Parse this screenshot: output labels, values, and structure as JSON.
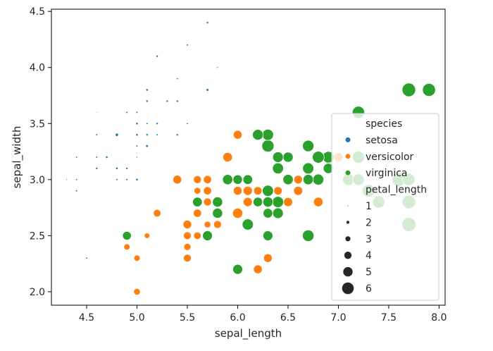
{
  "chart_data": {
    "type": "scatter",
    "title": "",
    "xlabel": "sepal_length",
    "ylabel": "sepal_width",
    "xlim": [
      4.15,
      8.06
    ],
    "ylim": [
      1.88,
      4.52
    ],
    "xticks": [
      4.5,
      5.0,
      5.5,
      6.0,
      6.5,
      7.0,
      7.5,
      8.0
    ],
    "yticks": [
      2.0,
      2.5,
      3.0,
      3.5,
      4.0,
      4.5
    ],
    "grid": false,
    "legend_position": "center-right",
    "hue": "species",
    "size": "petal_length",
    "colors": {
      "setosa": "#1f77b4",
      "versicolor": "#ff7f0e",
      "virginica": "#2ca02c"
    },
    "legend": {
      "hue_title": "species",
      "hue_entries": [
        "setosa",
        "versicolor",
        "virginica"
      ],
      "size_title": "petal_length",
      "size_entries": [
        {
          "label": "1",
          "value": 1
        },
        {
          "label": "2",
          "value": 2
        },
        {
          "label": "3",
          "value": 3
        },
        {
          "label": "4",
          "value": 4
        },
        {
          "label": "5",
          "value": 5
        },
        {
          "label": "6",
          "value": 6
        }
      ]
    },
    "series": [
      {
        "name": "setosa",
        "points": [
          [
            5.1,
            3.5,
            1.4
          ],
          [
            4.9,
            3.0,
            1.4
          ],
          [
            4.7,
            3.2,
            1.3
          ],
          [
            4.6,
            3.1,
            1.5
          ],
          [
            5.0,
            3.6,
            1.4
          ],
          [
            5.4,
            3.9,
            1.7
          ],
          [
            4.6,
            3.4,
            1.4
          ],
          [
            5.0,
            3.4,
            1.5
          ],
          [
            4.4,
            2.9,
            1.4
          ],
          [
            4.9,
            3.1,
            1.5
          ],
          [
            5.4,
            3.7,
            1.5
          ],
          [
            4.8,
            3.4,
            1.6
          ],
          [
            4.8,
            3.0,
            1.4
          ],
          [
            4.3,
            3.0,
            1.1
          ],
          [
            5.8,
            4.0,
            1.2
          ],
          [
            5.7,
            4.4,
            1.5
          ],
          [
            5.4,
            3.9,
            1.3
          ],
          [
            5.1,
            3.5,
            1.4
          ],
          [
            5.7,
            3.8,
            1.7
          ],
          [
            5.1,
            3.8,
            1.5
          ],
          [
            5.4,
            3.4,
            1.7
          ],
          [
            5.1,
            3.7,
            1.5
          ],
          [
            4.6,
            3.6,
            1.0
          ],
          [
            5.1,
            3.3,
            1.7
          ],
          [
            4.8,
            3.4,
            1.9
          ],
          [
            5.0,
            3.0,
            1.6
          ],
          [
            5.0,
            3.4,
            1.6
          ],
          [
            5.2,
            3.5,
            1.5
          ],
          [
            5.2,
            3.4,
            1.4
          ],
          [
            4.7,
            3.2,
            1.6
          ],
          [
            4.8,
            3.1,
            1.6
          ],
          [
            5.4,
            3.4,
            1.5
          ],
          [
            5.2,
            4.1,
            1.5
          ],
          [
            5.5,
            4.2,
            1.4
          ],
          [
            4.9,
            3.1,
            1.5
          ],
          [
            5.0,
            3.2,
            1.2
          ],
          [
            5.5,
            3.5,
            1.3
          ],
          [
            4.9,
            3.6,
            1.4
          ],
          [
            4.4,
            3.0,
            1.3
          ],
          [
            5.1,
            3.4,
            1.5
          ],
          [
            5.0,
            3.5,
            1.3
          ],
          [
            4.5,
            2.3,
            1.3
          ],
          [
            4.4,
            3.2,
            1.3
          ],
          [
            5.0,
            3.5,
            1.6
          ],
          [
            5.1,
            3.8,
            1.9
          ],
          [
            4.8,
            3.0,
            1.4
          ],
          [
            5.1,
            3.8,
            1.6
          ],
          [
            4.6,
            3.2,
            1.4
          ],
          [
            5.3,
            3.7,
            1.5
          ],
          [
            5.0,
            3.3,
            1.4
          ]
        ]
      },
      {
        "name": "versicolor",
        "points": [
          [
            7.0,
            3.2,
            4.7
          ],
          [
            6.4,
            3.2,
            4.5
          ],
          [
            6.9,
            3.1,
            4.9
          ],
          [
            5.5,
            2.3,
            4.0
          ],
          [
            6.5,
            2.8,
            4.6
          ],
          [
            5.7,
            2.8,
            4.5
          ],
          [
            6.3,
            3.3,
            4.7
          ],
          [
            4.9,
            2.4,
            3.3
          ],
          [
            6.6,
            2.9,
            4.6
          ],
          [
            5.2,
            2.7,
            3.9
          ],
          [
            5.0,
            2.0,
            3.5
          ],
          [
            5.9,
            3.0,
            4.2
          ],
          [
            6.0,
            2.2,
            4.0
          ],
          [
            6.1,
            2.9,
            4.7
          ],
          [
            5.6,
            2.9,
            3.6
          ],
          [
            6.7,
            3.1,
            4.4
          ],
          [
            5.6,
            3.0,
            4.5
          ],
          [
            5.8,
            2.7,
            4.1
          ],
          [
            6.2,
            2.2,
            4.5
          ],
          [
            5.6,
            2.5,
            3.9
          ],
          [
            5.9,
            3.2,
            4.8
          ],
          [
            6.1,
            2.8,
            4.0
          ],
          [
            6.3,
            2.5,
            4.9
          ],
          [
            6.1,
            2.8,
            4.7
          ],
          [
            6.4,
            2.9,
            4.3
          ],
          [
            6.6,
            3.0,
            4.4
          ],
          [
            6.8,
            2.8,
            4.8
          ],
          [
            6.7,
            3.0,
            5.0
          ],
          [
            6.0,
            2.9,
            4.5
          ],
          [
            5.7,
            2.6,
            3.5
          ],
          [
            5.5,
            2.4,
            3.8
          ],
          [
            5.5,
            2.4,
            3.7
          ],
          [
            5.8,
            2.7,
            3.9
          ],
          [
            6.0,
            2.7,
            5.1
          ],
          [
            5.4,
            3.0,
            4.5
          ],
          [
            6.0,
            3.4,
            4.5
          ],
          [
            6.7,
            3.1,
            4.7
          ],
          [
            6.3,
            2.3,
            4.4
          ],
          [
            5.6,
            3.0,
            4.1
          ],
          [
            5.5,
            2.5,
            4.0
          ],
          [
            5.5,
            2.6,
            4.4
          ],
          [
            6.1,
            3.0,
            4.6
          ],
          [
            5.8,
            2.6,
            4.0
          ],
          [
            5.0,
            2.3,
            3.3
          ],
          [
            5.6,
            2.7,
            4.2
          ],
          [
            5.7,
            3.0,
            4.2
          ],
          [
            5.7,
            2.9,
            4.2
          ],
          [
            6.2,
            2.9,
            4.3
          ],
          [
            5.1,
            2.5,
            3.0
          ],
          [
            5.7,
            2.8,
            4.1
          ]
        ]
      },
      {
        "name": "virginica",
        "points": [
          [
            6.3,
            3.3,
            6.0
          ],
          [
            5.8,
            2.7,
            5.1
          ],
          [
            7.1,
            3.0,
            5.9
          ],
          [
            6.3,
            2.9,
            5.6
          ],
          [
            6.5,
            3.0,
            5.8
          ],
          [
            7.6,
            3.0,
            6.6
          ],
          [
            4.9,
            2.5,
            4.5
          ],
          [
            7.3,
            2.9,
            6.3
          ],
          [
            6.7,
            2.5,
            5.8
          ],
          [
            7.2,
            3.6,
            6.1
          ],
          [
            6.5,
            3.2,
            5.1
          ],
          [
            6.4,
            2.7,
            5.3
          ],
          [
            6.8,
            3.0,
            5.5
          ],
          [
            5.7,
            2.5,
            5.0
          ],
          [
            5.8,
            2.8,
            5.1
          ],
          [
            6.4,
            3.2,
            5.3
          ],
          [
            6.5,
            3.0,
            5.5
          ],
          [
            7.7,
            3.8,
            6.7
          ],
          [
            7.7,
            2.6,
            6.9
          ],
          [
            6.0,
            2.2,
            5.0
          ],
          [
            6.9,
            3.2,
            5.7
          ],
          [
            5.6,
            2.8,
            4.9
          ],
          [
            7.7,
            2.8,
            6.7
          ],
          [
            6.3,
            2.7,
            4.9
          ],
          [
            6.7,
            3.3,
            5.7
          ],
          [
            7.2,
            3.2,
            6.0
          ],
          [
            6.2,
            2.8,
            4.8
          ],
          [
            6.1,
            3.0,
            4.9
          ],
          [
            6.4,
            2.8,
            5.6
          ],
          [
            7.2,
            3.0,
            5.8
          ],
          [
            7.4,
            2.8,
            6.1
          ],
          [
            7.9,
            3.8,
            6.4
          ],
          [
            6.4,
            2.8,
            5.6
          ],
          [
            6.3,
            2.8,
            5.1
          ],
          [
            6.1,
            2.6,
            5.6
          ],
          [
            7.7,
            3.0,
            6.1
          ],
          [
            6.3,
            3.4,
            5.6
          ],
          [
            6.4,
            3.1,
            5.5
          ],
          [
            6.0,
            3.0,
            4.8
          ],
          [
            6.9,
            3.1,
            5.4
          ],
          [
            6.7,
            3.1,
            5.6
          ],
          [
            6.9,
            3.1,
            5.1
          ],
          [
            5.8,
            2.7,
            5.1
          ],
          [
            6.8,
            3.2,
            5.9
          ],
          [
            6.7,
            3.3,
            5.7
          ],
          [
            6.7,
            3.0,
            5.2
          ],
          [
            6.3,
            2.5,
            5.0
          ],
          [
            6.5,
            3.0,
            5.2
          ],
          [
            6.2,
            3.4,
            5.4
          ],
          [
            5.9,
            3.0,
            5.1
          ]
        ]
      }
    ]
  }
}
